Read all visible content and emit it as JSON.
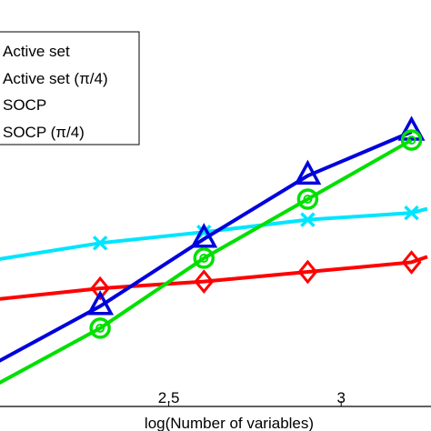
{
  "chart_data": {
    "type": "line",
    "xlabel": "log(Number of variables)",
    "ylabel": "",
    "title": "",
    "xlim": [
      2.0,
      3.25
    ],
    "ylim": [
      0,
      10
    ],
    "xticks": [
      2.5,
      3
    ],
    "xtick_labels": [
      "2.5",
      "3"
    ],
    "grid": false,
    "legend_position": "top-left",
    "series": [
      {
        "name": "Active set",
        "color": "#ff0000",
        "marker": "diamond",
        "x": [
          2.0,
          2.301,
          2.602,
          2.903,
          3.204,
          3.25
        ],
        "y": [
          3.9,
          4.3,
          4.55,
          4.9,
          5.25,
          5.45
        ]
      },
      {
        "name": "Active set (π/4)",
        "color": "#00e5ff",
        "marker": "x",
        "x": [
          2.0,
          2.301,
          2.602,
          2.903,
          3.204,
          3.25
        ],
        "y": [
          5.35,
          5.95,
          6.35,
          6.8,
          7.05,
          7.2
        ]
      },
      {
        "name": "SOCP",
        "color": "#0000dd",
        "marker": "triangle",
        "x": [
          2.0,
          2.301,
          2.602,
          2.903,
          3.204
        ],
        "y": [
          1.6,
          3.65,
          6.1,
          8.4,
          10.0
        ]
      },
      {
        "name": "SOCP (π/4)",
        "color": "#00e000",
        "marker": "circle",
        "x": [
          2.0,
          2.301,
          2.602,
          2.903,
          3.204
        ],
        "y": [
          0.8,
          2.85,
          5.4,
          7.55,
          9.7
        ]
      }
    ]
  }
}
